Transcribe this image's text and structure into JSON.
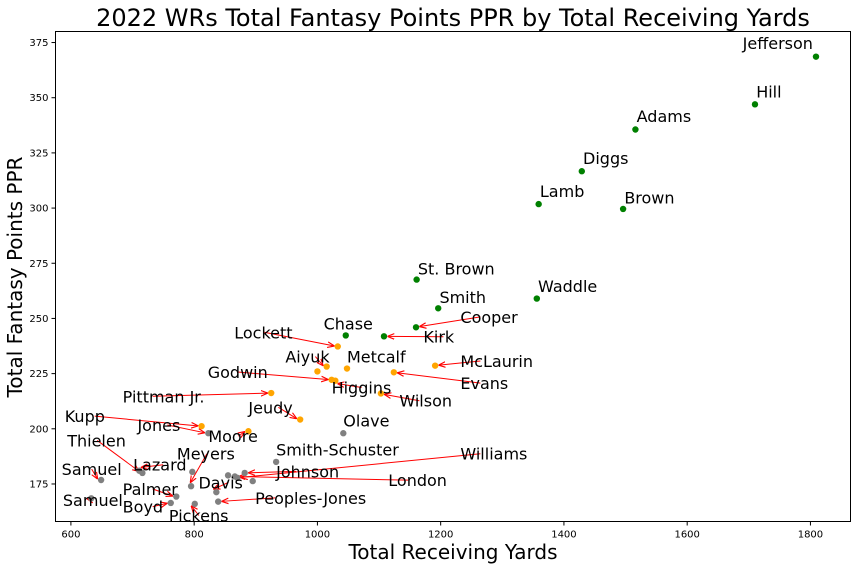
{
  "chart_data": {
    "type": "scatter",
    "title": "2022 WRs Total Fantasy Points PPR by Total Receiving Yards",
    "xlabel": "Total Receiving Yards",
    "ylabel": "Total Fantasy Points PPR",
    "xlim": [
      575,
      1865
    ],
    "ylim": [
      158,
      380
    ],
    "xticks": [
      600,
      800,
      1000,
      1200,
      1400,
      1600,
      1800
    ],
    "yticks": [
      175,
      200,
      225,
      250,
      275,
      300,
      325,
      350,
      375
    ],
    "grid": false,
    "colors": {
      "green": "#008000",
      "orange": "#ffa500",
      "gray": "#808080",
      "arrow": "#ff0000"
    },
    "points": [
      {
        "name": "Jefferson",
        "x": 1809,
        "y": 368.6,
        "color": "green",
        "label": [
          1690,
          372
        ]
      },
      {
        "name": "Hill",
        "x": 1710,
        "y": 347.0,
        "color": "green",
        "label": [
          1712,
          350
        ]
      },
      {
        "name": "Adams",
        "x": 1516,
        "y": 335.6,
        "color": "green",
        "label": [
          1518,
          339
        ]
      },
      {
        "name": "Diggs",
        "x": 1429,
        "y": 316.7,
        "color": "green",
        "label": [
          1431,
          320
        ]
      },
      {
        "name": "Lamb",
        "x": 1359,
        "y": 301.8,
        "color": "green",
        "label": [
          1361,
          305
        ]
      },
      {
        "name": "Brown",
        "x": 1496,
        "y": 299.6,
        "color": "green",
        "label": [
          1498,
          302
        ]
      },
      {
        "name": "St. Brown",
        "x": 1161,
        "y": 267.6,
        "color": "green",
        "label": [
          1163,
          270
        ]
      },
      {
        "name": "Waddle",
        "x": 1356,
        "y": 259.0,
        "color": "green",
        "label": [
          1358,
          262
        ]
      },
      {
        "name": "Smith",
        "x": 1196,
        "y": 254.6,
        "color": "green",
        "label": [
          1198,
          257
        ]
      },
      {
        "name": "Cooper",
        "x": 1160,
        "y": 246.0,
        "color": "green",
        "label": [
          1232,
          248
        ],
        "arrow": true
      },
      {
        "name": "Chase",
        "x": 1046,
        "y": 242.3,
        "color": "green",
        "label": [
          1010,
          245
        ]
      },
      {
        "name": "Kirk",
        "x": 1108,
        "y": 241.9,
        "color": "green",
        "label": [
          1172,
          239
        ],
        "arrow": true
      },
      {
        "name": "Lockett",
        "x": 1033,
        "y": 237.3,
        "color": "orange",
        "label": [
          865,
          241
        ],
        "arrow": true
      },
      {
        "name": "Aiyuk",
        "x": 1015,
        "y": 228.2,
        "color": "orange",
        "label": [
          948,
          230
        ],
        "arrow": true
      },
      {
        "name": "Metcalf",
        "x": 1048,
        "y": 227.3,
        "color": "orange",
        "label": [
          1048,
          230
        ]
      },
      {
        "name": "McLaurin",
        "x": 1191,
        "y": 228.6,
        "color": "orange",
        "label": [
          1232,
          228
        ],
        "arrow": true
      },
      {
        "name": "Evans",
        "x": 1124,
        "y": 225.6,
        "color": "orange",
        "label": [
          1232,
          218
        ],
        "arrow": true
      },
      {
        "name": "Godwin",
        "x": 1023,
        "y": 222.2,
        "color": "orange",
        "label": [
          822,
          223
        ],
        "arrow": true
      },
      {
        "name": "Higgins",
        "x": 1029,
        "y": 221.8,
        "color": "orange",
        "label": [
          1023,
          216
        ],
        "arrow": true
      },
      {
        "name": "Pittman Jr.",
        "x": 925,
        "y": 216.2,
        "color": "orange",
        "label": [
          684,
          212
        ],
        "arrow": true
      },
      {
        "name": "Wilson",
        "x": 1103,
        "y": 216.0,
        "color": "orange",
        "label": [
          1133,
          210
        ],
        "arrow": true
      },
      {
        "name": "Jeudy",
        "x": 972,
        "y": 204.2,
        "color": "orange",
        "label": [
          888,
          207
        ],
        "arrow": true
      },
      {
        "name": "Kupp",
        "x": 812,
        "y": 201.2,
        "color": "orange",
        "label": [
          590,
          203
        ],
        "arrow": true
      },
      {
        "name": "Jones",
        "x": 823,
        "y": 198.0,
        "color": "gray",
        "label": [
          708,
          199
        ],
        "arrow": true
      },
      {
        "name": "Moore",
        "x": 888,
        "y": 198.9,
        "color": "orange",
        "label": [
          823,
          194
        ],
        "arrow": true
      },
      {
        "name": "Olave",
        "x": 1042,
        "y": 198.0,
        "color": "gray",
        "label": [
          1042,
          201
        ]
      },
      {
        "name": "Thielen",
        "x": 716,
        "y": 180.0,
        "color": "gray",
        "label": [
          594,
          192
        ],
        "arrow": true
      },
      {
        "name": "Smith-Schuster",
        "x": 933,
        "y": 185.0,
        "color": "gray",
        "label": [
          933,
          188
        ]
      },
      {
        "name": "Williams",
        "x": 870,
        "y": 177.8,
        "color": "gray",
        "label": [
          1232,
          186
        ],
        "arrow": true
      },
      {
        "name": "Meyers",
        "x": 795,
        "y": 174.0,
        "color": "gray",
        "label": [
          772,
          186
        ],
        "arrow": true
      },
      {
        "name": "Lazard",
        "x": 711,
        "y": 181.0,
        "color": "gray",
        "label": [
          701,
          181
        ],
        "arrow": true
      },
      {
        "name": "Samuel",
        "x": 649,
        "y": 176.8,
        "color": "gray",
        "label": [
          585,
          179
        ],
        "arrow": true
      },
      {
        "name": "Johnson",
        "x": 882,
        "y": 180.0,
        "color": "gray",
        "label": [
          933,
          178
        ],
        "arrow": true
      },
      {
        "name": "London",
        "x": 866,
        "y": 178.4,
        "color": "gray",
        "label": [
          1115,
          174
        ],
        "arrow": true
      },
      {
        "name": "Davis",
        "x": 836,
        "y": 171.3,
        "color": "gray",
        "label": [
          807,
          173
        ],
        "arrow": true
      },
      {
        "name": "Palmer",
        "x": 771,
        "y": 169.3,
        "color": "gray",
        "label": [
          684,
          170
        ],
        "arrow": true
      },
      {
        "name": "Peoples-Jones",
        "x": 839,
        "y": 167.0,
        "color": "gray",
        "label": [
          899,
          166
        ],
        "arrow": true
      },
      {
        "name": "Samuel",
        "x": 633,
        "y": 168.5,
        "color": "gray",
        "label": [
          587,
          165
        ],
        "arrow": true
      },
      {
        "name": "Boyd",
        "x": 762,
        "y": 166.4,
        "color": "gray",
        "label": [
          684,
          162
        ],
        "arrow": true
      },
      {
        "name": "Pickens",
        "x": 801,
        "y": 166.0,
        "color": "gray",
        "label": [
          759,
          158
        ],
        "arrow": true
      }
    ],
    "extra_points": [
      {
        "x": 797,
        "y": 180.5,
        "color": "gray"
      },
      {
        "x": 1000,
        "y": 226.0,
        "color": "orange"
      },
      {
        "x": 895,
        "y": 176.3,
        "color": "gray"
      },
      {
        "x": 855,
        "y": 178.9,
        "color": "gray"
      }
    ]
  }
}
